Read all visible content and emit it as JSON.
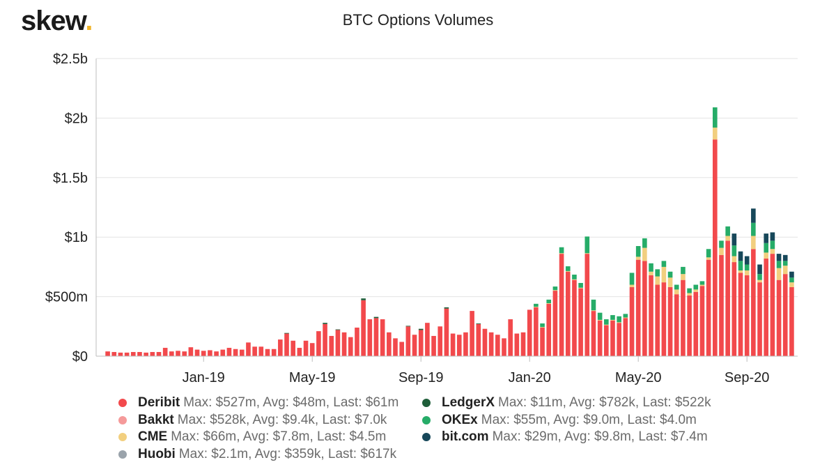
{
  "logo": {
    "text": "skew",
    "dot": "."
  },
  "chart_data": {
    "type": "bar",
    "stacked": true,
    "title": "BTC Options Volumes",
    "xlabel": "",
    "ylabel": "",
    "ylim": [
      0,
      2500
    ],
    "value_unit": "millions USD",
    "yticks": [
      {
        "value": 0,
        "label": "$0"
      },
      {
        "value": 500,
        "label": "$500m"
      },
      {
        "value": 1000,
        "label": "$1b"
      },
      {
        "value": 1500,
        "label": "$1.5b"
      },
      {
        "value": 2000,
        "label": "$2b"
      },
      {
        "value": 2500,
        "label": "$2.5b"
      }
    ],
    "xticks": [
      {
        "index": 15,
        "label": "Jan-19"
      },
      {
        "index": 32,
        "label": "May-19"
      },
      {
        "index": 49,
        "label": "Sep-19"
      },
      {
        "index": 66,
        "label": "Jan-20"
      },
      {
        "index": 83,
        "label": "May-20"
      },
      {
        "index": 100,
        "label": "Sep-20"
      }
    ],
    "series": [
      {
        "name": "Deribit",
        "color": "#f2494c",
        "stats": "Max: $527m, Avg: $48m, Last: $61m",
        "values": [
          40,
          35,
          30,
          30,
          35,
          35,
          30,
          35,
          35,
          70,
          40,
          45,
          40,
          75,
          55,
          45,
          50,
          40,
          55,
          70,
          60,
          55,
          115,
          80,
          80,
          60,
          60,
          140,
          190,
          130,
          70,
          130,
          110,
          210,
          270,
          170,
          220,
          200,
          160,
          240,
          470,
          310,
          320,
          310,
          200,
          150,
          120,
          250,
          180,
          220,
          280,
          170,
          250,
          400,
          190,
          180,
          200,
          380,
          270,
          230,
          200,
          180,
          150,
          310,
          190,
          200,
          390,
          410,
          240,
          440,
          550,
          860,
          710,
          640,
          570,
          860,
          380,
          300,
          260,
          300,
          280,
          320,
          580,
          810,
          800,
          680,
          600,
          620,
          580,
          520,
          640,
          510,
          540,
          590,
          810,
          1820,
          850,
          970,
          790,
          700,
          680,
          900,
          620,
          820,
          860,
          640,
          690,
          580
        ]
      },
      {
        "name": "Bakkt",
        "color": "#f59a9a",
        "stats": "Max: $528k, Avg: $9.4k, Last: $7.0k",
        "values": [
          0,
          0,
          0,
          0,
          0,
          0,
          0,
          0,
          0,
          0,
          0,
          0,
          0,
          0,
          0,
          0,
          0,
          0,
          0,
          0,
          0,
          0,
          0,
          0,
          0,
          0,
          0,
          0,
          0,
          0,
          0,
          0,
          0,
          0,
          0,
          0,
          0,
          0,
          0,
          0,
          0,
          0,
          0,
          0,
          0,
          0,
          0,
          0,
          0,
          0,
          0,
          0,
          0,
          0,
          0,
          0,
          0,
          0,
          0,
          0,
          0,
          0,
          0,
          0,
          0,
          0,
          0,
          0,
          0,
          0,
          0,
          0,
          0,
          0,
          0,
          0,
          0,
          0,
          0,
          0,
          0,
          0,
          0,
          0,
          0,
          0,
          0,
          0,
          0,
          0,
          0,
          0,
          0,
          0,
          0,
          0,
          0,
          0,
          0,
          0,
          0,
          0,
          0,
          0,
          0,
          0,
          0,
          0
        ]
      },
      {
        "name": "CME",
        "color": "#f2cf7f",
        "stats": "Max: $66m, Avg: $7.8m, Last: $4.5m",
        "values": [
          0,
          0,
          0,
          0,
          0,
          0,
          0,
          0,
          0,
          0,
          0,
          0,
          0,
          0,
          0,
          0,
          0,
          0,
          0,
          0,
          0,
          0,
          0,
          0,
          0,
          0,
          0,
          0,
          0,
          0,
          0,
          0,
          0,
          0,
          0,
          0,
          0,
          0,
          0,
          0,
          0,
          0,
          0,
          0,
          0,
          0,
          0,
          0,
          0,
          0,
          0,
          0,
          0,
          0,
          0,
          0,
          0,
          0,
          0,
          0,
          0,
          0,
          0,
          0,
          0,
          0,
          0,
          5,
          5,
          5,
          5,
          5,
          5,
          5,
          5,
          5,
          5,
          5,
          5,
          5,
          5,
          5,
          20,
          25,
          110,
          30,
          70,
          130,
          80,
          40,
          50,
          20,
          20,
          10,
          20,
          100,
          60,
          40,
          50,
          20,
          40,
          110,
          20,
          50,
          40,
          100,
          70,
          40
        ]
      },
      {
        "name": "Huobi",
        "color": "#9aa3ab",
        "stats": "Max: $2.1m, Avg: $359k, Last: $617k",
        "values": [
          0,
          0,
          0,
          0,
          0,
          0,
          0,
          0,
          0,
          0,
          0,
          0,
          0,
          0,
          0,
          0,
          0,
          0,
          0,
          0,
          0,
          0,
          0,
          0,
          0,
          0,
          0,
          0,
          0,
          0,
          0,
          0,
          0,
          0,
          0,
          0,
          0,
          0,
          0,
          0,
          0,
          0,
          0,
          0,
          0,
          0,
          0,
          0,
          0,
          0,
          0,
          0,
          0,
          0,
          0,
          0,
          0,
          0,
          0,
          0,
          0,
          0,
          0,
          0,
          0,
          0,
          0,
          0,
          0,
          0,
          0,
          0,
          0,
          0,
          0,
          0,
          0,
          0,
          0,
          0,
          0,
          0,
          0,
          0,
          0,
          0,
          0,
          0,
          0,
          0,
          0,
          0,
          0,
          0,
          0,
          0,
          0,
          0,
          0,
          0,
          0,
          0,
          0,
          0,
          0,
          0,
          0,
          0
        ]
      },
      {
        "name": "LedgerX",
        "color": "#1f5e3a",
        "stats": "Max: $11m, Avg: $782k, Last: $522k",
        "values": [
          0,
          0,
          0,
          0,
          0,
          0,
          0,
          0,
          0,
          0,
          0,
          0,
          0,
          0,
          0,
          0,
          0,
          0,
          0,
          0,
          0,
          0,
          0,
          0,
          0,
          0,
          0,
          0,
          5,
          0,
          0,
          0,
          0,
          0,
          10,
          0,
          5,
          0,
          0,
          0,
          15,
          0,
          10,
          0,
          0,
          0,
          0,
          5,
          0,
          10,
          0,
          0,
          0,
          10,
          0,
          0,
          0,
          0,
          5,
          0,
          0,
          0,
          0,
          0,
          0,
          0,
          0,
          0,
          0,
          0,
          0,
          0,
          0,
          0,
          0,
          0,
          0,
          0,
          0,
          0,
          0,
          0,
          0,
          0,
          0,
          0,
          0,
          0,
          0,
          0,
          0,
          0,
          0,
          0,
          0,
          0,
          0,
          0,
          0,
          0,
          0,
          0,
          0,
          0,
          0,
          0,
          0,
          0
        ]
      },
      {
        "name": "OKEx",
        "color": "#26ac68",
        "stats": "Max: $55m, Avg: $9.0m, Last: $4.0m",
        "values": [
          0,
          0,
          0,
          0,
          0,
          0,
          0,
          0,
          0,
          0,
          0,
          0,
          0,
          0,
          0,
          0,
          0,
          0,
          0,
          0,
          0,
          0,
          0,
          0,
          0,
          0,
          0,
          0,
          0,
          0,
          0,
          0,
          0,
          0,
          0,
          0,
          0,
          0,
          0,
          0,
          0,
          0,
          0,
          0,
          0,
          0,
          0,
          0,
          0,
          0,
          0,
          0,
          0,
          0,
          0,
          0,
          0,
          0,
          0,
          0,
          0,
          0,
          0,
          0,
          0,
          0,
          0,
          25,
          30,
          30,
          30,
          50,
          40,
          40,
          40,
          140,
          90,
          60,
          45,
          40,
          50,
          30,
          100,
          90,
          80,
          70,
          60,
          50,
          50,
          40,
          60,
          40,
          40,
          30,
          70,
          170,
          60,
          80,
          90,
          80,
          50,
          110,
          50,
          80,
          70,
          60,
          40,
          40
        ]
      },
      {
        "name": "bit.com",
        "color": "#17485a",
        "stats": "Max: $29m, Avg: $9.8m, Last: $7.4m",
        "values": [
          0,
          0,
          0,
          0,
          0,
          0,
          0,
          0,
          0,
          0,
          0,
          0,
          0,
          0,
          0,
          0,
          0,
          0,
          0,
          0,
          0,
          0,
          0,
          0,
          0,
          0,
          0,
          0,
          0,
          0,
          0,
          0,
          0,
          0,
          0,
          0,
          0,
          0,
          0,
          0,
          0,
          0,
          0,
          0,
          0,
          0,
          0,
          0,
          0,
          0,
          0,
          0,
          0,
          0,
          0,
          0,
          0,
          0,
          0,
          0,
          0,
          0,
          0,
          0,
          0,
          0,
          0,
          0,
          0,
          0,
          0,
          0,
          0,
          0,
          0,
          0,
          0,
          0,
          0,
          0,
          0,
          0,
          0,
          0,
          0,
          0,
          0,
          0,
          0,
          0,
          0,
          0,
          0,
          0,
          0,
          0,
          0,
          0,
          100,
          80,
          70,
          120,
          80,
          80,
          70,
          60,
          50,
          50
        ]
      }
    ]
  },
  "legend": {
    "left": [
      0,
      1,
      2,
      3
    ],
    "right": [
      4,
      5,
      6
    ]
  }
}
